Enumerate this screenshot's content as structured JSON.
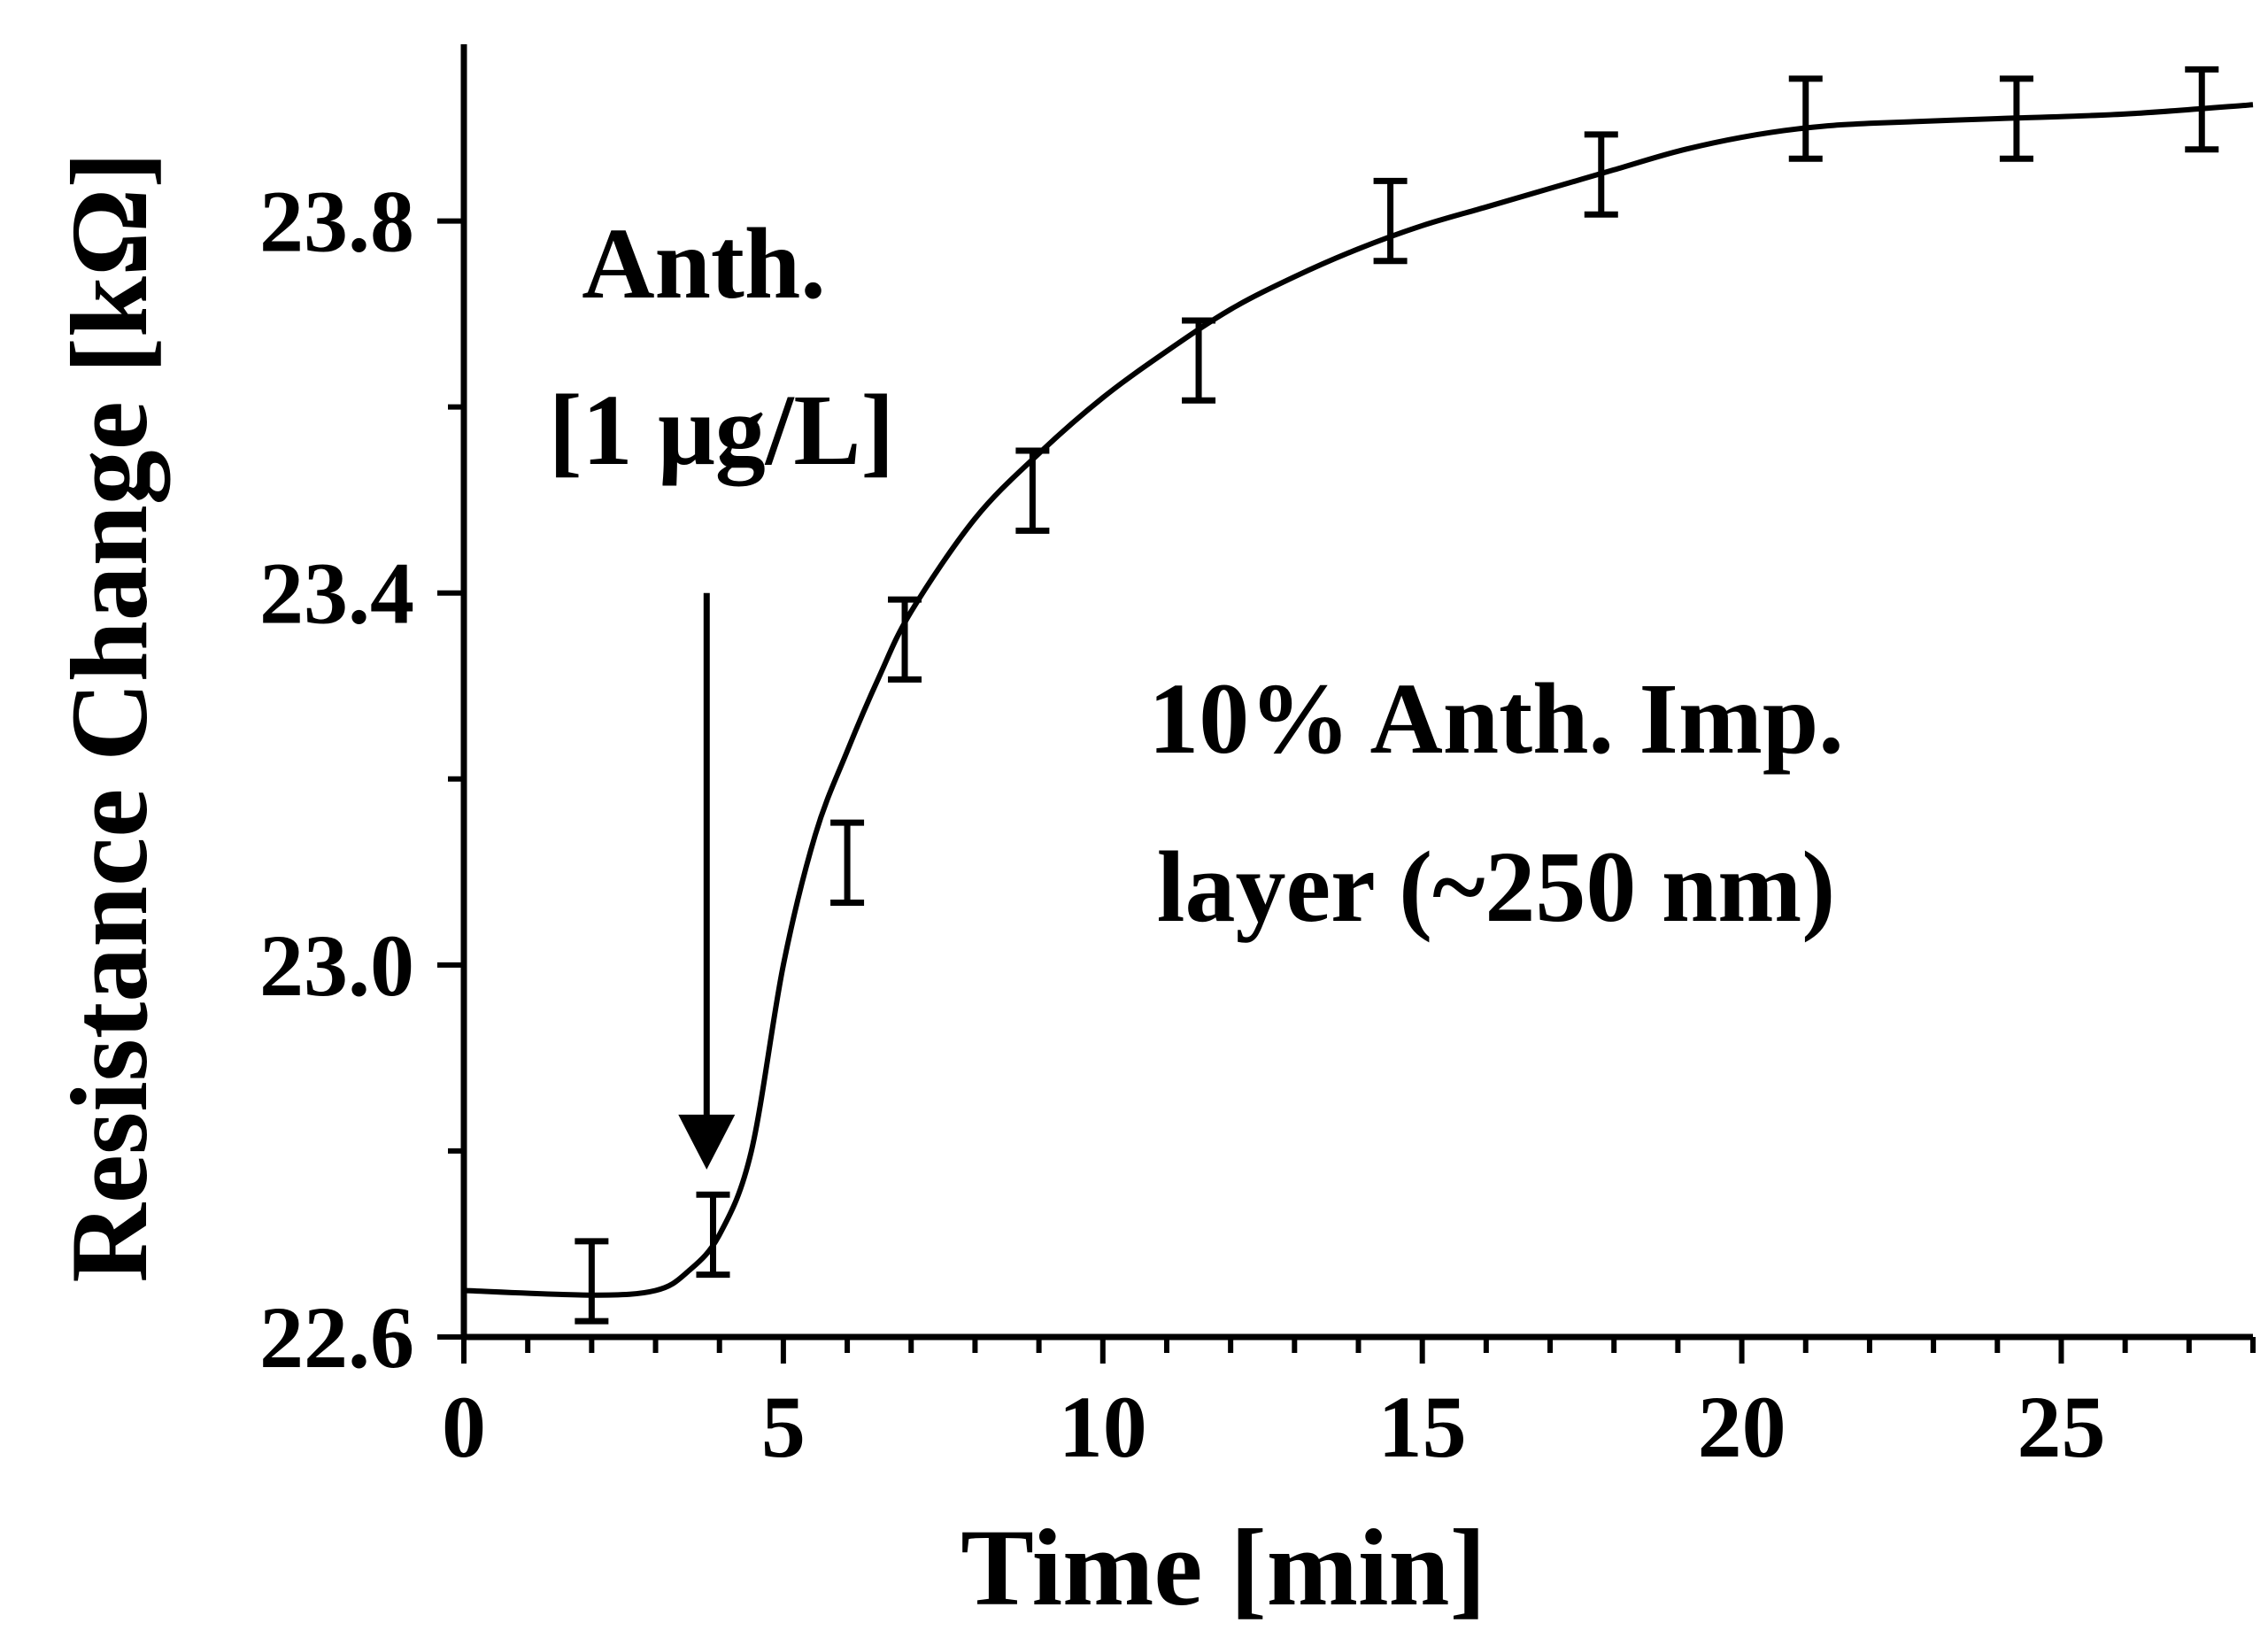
{
  "chart_data": {
    "type": "scatter",
    "xlabel": "Time [min]",
    "ylabel": "Resistance Change [kΩ]",
    "xlim": [
      0,
      28
    ],
    "ylim": [
      22.6,
      23.99
    ],
    "x_ticks": [
      0,
      5,
      10,
      15,
      20,
      25
    ],
    "x_tick_labels": [
      "0",
      "5",
      "10",
      "15",
      "20",
      "25"
    ],
    "x_minor_step": 1,
    "y_ticks": [
      22.6,
      23.0,
      23.4,
      23.8
    ],
    "y_tick_labels": [
      "22.6",
      "23.0",
      "23.4",
      "23.8"
    ],
    "y_minor_step": 0.2,
    "grid": false,
    "legend": "none",
    "series": [
      {
        "points": [
          {
            "x": 2.0,
            "y": 22.66,
            "err": 0.043
          },
          {
            "x": 3.9,
            "y": 22.71,
            "err": 0.043
          },
          {
            "x": 6.0,
            "y": 23.11,
            "err": 0.043
          },
          {
            "x": 6.9,
            "y": 23.35,
            "err": 0.043
          },
          {
            "x": 8.9,
            "y": 23.51,
            "err": 0.043
          },
          {
            "x": 11.5,
            "y": 23.65,
            "err": 0.043
          },
          {
            "x": 14.5,
            "y": 23.8,
            "err": 0.043
          },
          {
            "x": 17.8,
            "y": 23.85,
            "err": 0.043
          },
          {
            "x": 21.0,
            "y": 23.91,
            "err": 0.043
          },
          {
            "x": 24.3,
            "y": 23.91,
            "err": 0.043
          },
          {
            "x": 27.2,
            "y": 23.92,
            "err": 0.043
          }
        ]
      }
    ],
    "fit_curve": {
      "x": [
        0,
        2,
        3,
        3.5,
        4,
        4.5,
        5,
        5.5,
        6,
        6.5,
        7,
        8,
        9,
        10,
        11,
        12,
        13,
        14,
        15,
        16,
        17,
        18,
        19,
        20,
        21,
        22,
        24,
        26,
        28
      ],
      "y": [
        22.65,
        22.645,
        22.65,
        22.67,
        22.71,
        22.8,
        23.0,
        23.14,
        23.23,
        23.31,
        23.38,
        23.48,
        23.55,
        23.61,
        23.66,
        23.705,
        23.74,
        23.77,
        23.795,
        23.815,
        23.835,
        23.855,
        23.875,
        23.89,
        23.9,
        23.905,
        23.91,
        23.915,
        23.925
      ]
    },
    "annotations": [
      {
        "lines": [
          "Anth.",
          "[1 μg/L]"
        ],
        "arrow_x": 3.8,
        "arrow_y_from": 23.4,
        "arrow_y_to": 22.78
      },
      {
        "lines": [
          "10% Anth. Imp.",
          "layer (~250 nm)"
        ]
      }
    ]
  }
}
